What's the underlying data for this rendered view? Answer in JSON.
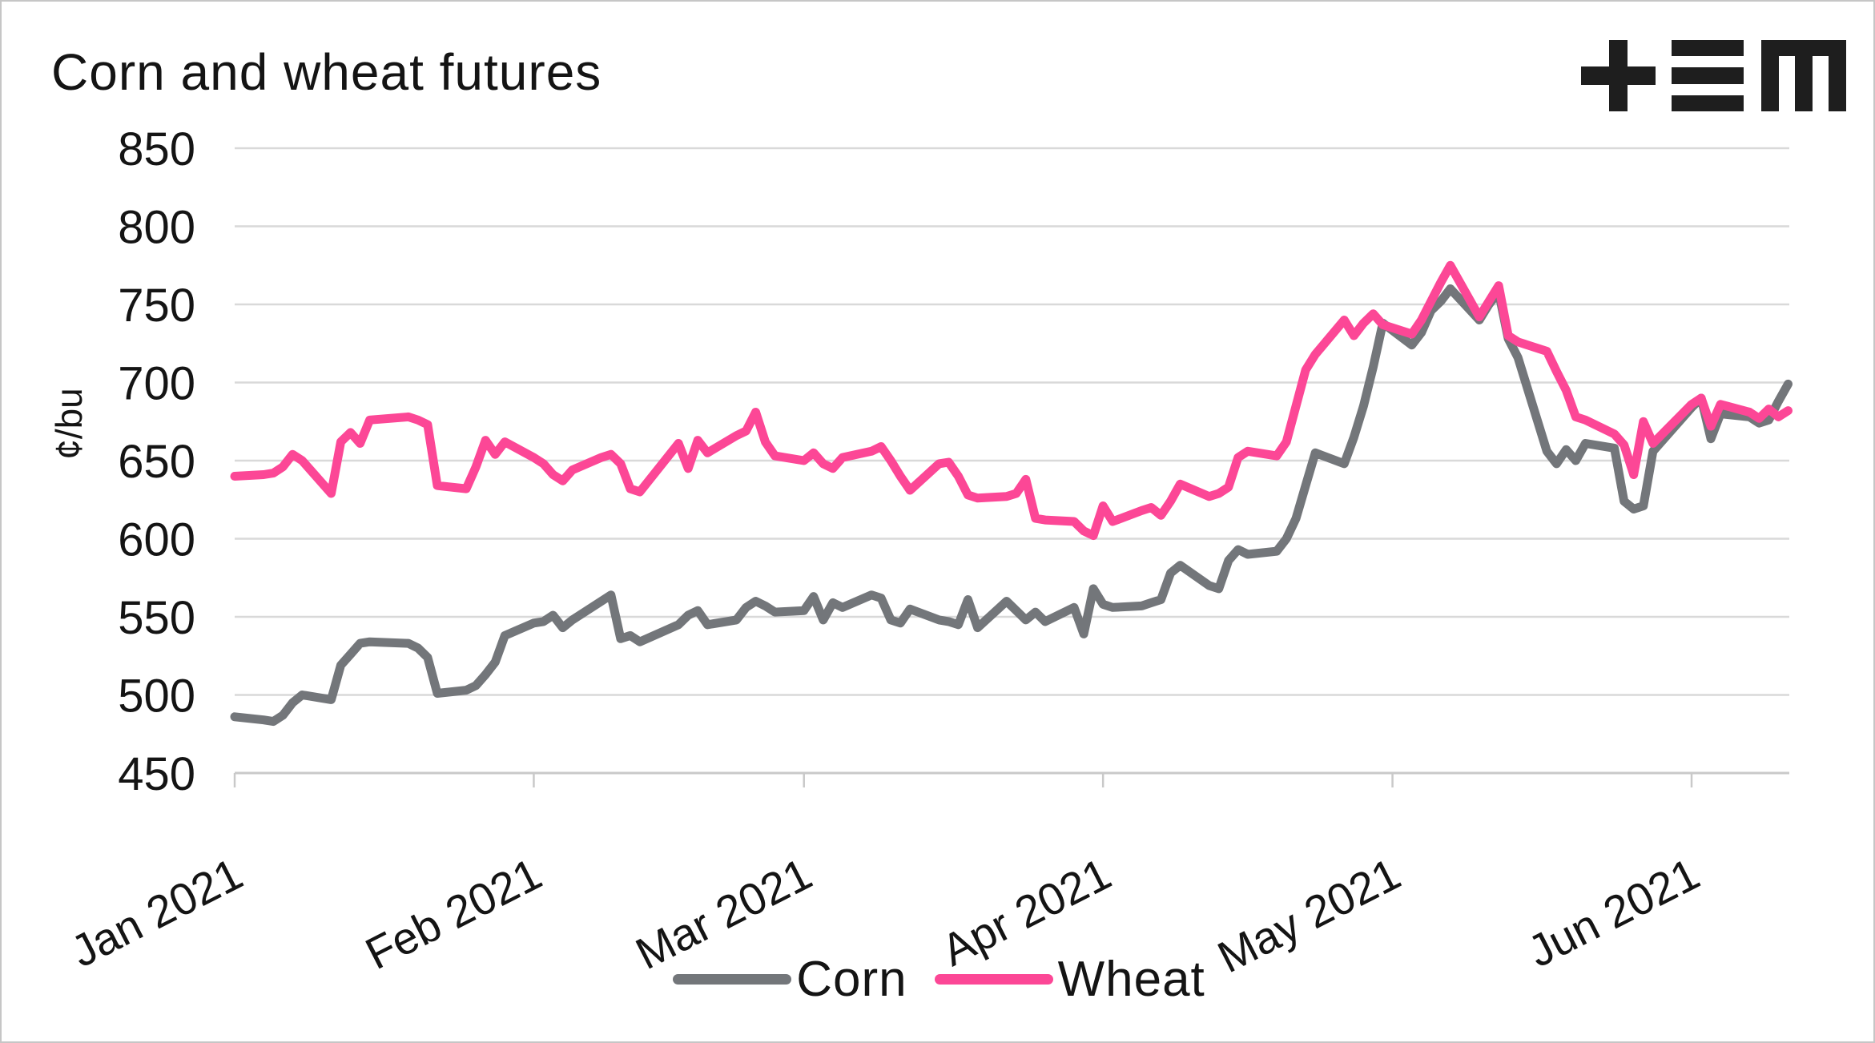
{
  "header": {
    "title": "Corn and wheat futures",
    "logo_glyphs": "plus-triple-bar-M"
  },
  "colors": {
    "corn": "#73767a",
    "wheat": "#fc4796",
    "gridline": "#d9d9d9",
    "axis_line": "#c9c9c9",
    "text": "#141414"
  },
  "chart_data": {
    "type": "line",
    "title": "Corn and wheat futures",
    "xlabel": "",
    "ylabel": "¢/bu",
    "ylim": [
      450,
      850
    ],
    "y_ticks": [
      850,
      800,
      750,
      700,
      650,
      600,
      550,
      500,
      450
    ],
    "grid": "horizontal",
    "legend_position": "bottom-center",
    "x_unit": "days since Jan 1 2021",
    "xlim_days": [
      0,
      161
    ],
    "x_ticks": [
      {
        "label": "Jan 2021",
        "day": 0
      },
      {
        "label": "Feb 2021",
        "day": 31
      },
      {
        "label": "Mar 2021",
        "day": 59
      },
      {
        "label": "Apr 2021",
        "day": 90
      },
      {
        "label": "May 2021",
        "day": 120
      },
      {
        "label": "Jun 2021",
        "day": 151
      }
    ],
    "series": [
      {
        "name": "Corn",
        "color": "#73767a",
        "points": [
          [
            0,
            486
          ],
          [
            3,
            484
          ],
          [
            4,
            483
          ],
          [
            5,
            487
          ],
          [
            6,
            495
          ],
          [
            7,
            500
          ],
          [
            10,
            497
          ],
          [
            11,
            519
          ],
          [
            12,
            526
          ],
          [
            13,
            533
          ],
          [
            14,
            534
          ],
          [
            18,
            533
          ],
          [
            19,
            530
          ],
          [
            20,
            524
          ],
          [
            21,
            501
          ],
          [
            24,
            503
          ],
          [
            25,
            506
          ],
          [
            26,
            513
          ],
          [
            27,
            521
          ],
          [
            28,
            538
          ],
          [
            31,
            546
          ],
          [
            32,
            547
          ],
          [
            33,
            551
          ],
          [
            34,
            543
          ],
          [
            35,
            548
          ],
          [
            38,
            560
          ],
          [
            39,
            564
          ],
          [
            40,
            536
          ],
          [
            41,
            538
          ],
          [
            42,
            534
          ],
          [
            46,
            545
          ],
          [
            47,
            551
          ],
          [
            48,
            554
          ],
          [
            49,
            545
          ],
          [
            52,
            548
          ],
          [
            53,
            556
          ],
          [
            54,
            560
          ],
          [
            55,
            557
          ],
          [
            56,
            553
          ],
          [
            59,
            554
          ],
          [
            60,
            563
          ],
          [
            61,
            548
          ],
          [
            62,
            559
          ],
          [
            63,
            556
          ],
          [
            66,
            564
          ],
          [
            67,
            562
          ],
          [
            68,
            548
          ],
          [
            69,
            546
          ],
          [
            70,
            555
          ],
          [
            73,
            548
          ],
          [
            74,
            547
          ],
          [
            75,
            545
          ],
          [
            76,
            561
          ],
          [
            77,
            543
          ],
          [
            80,
            560
          ],
          [
            81,
            554
          ],
          [
            82,
            548
          ],
          [
            83,
            553
          ],
          [
            84,
            547
          ],
          [
            87,
            556
          ],
          [
            88,
            539
          ],
          [
            89,
            568
          ],
          [
            90,
            558
          ],
          [
            91,
            556
          ],
          [
            94,
            557
          ],
          [
            95,
            559
          ],
          [
            96,
            561
          ],
          [
            97,
            578
          ],
          [
            98,
            583
          ],
          [
            101,
            570
          ],
          [
            102,
            568
          ],
          [
            103,
            586
          ],
          [
            104,
            593
          ],
          [
            105,
            590
          ],
          [
            108,
            592
          ],
          [
            109,
            600
          ],
          [
            110,
            613
          ],
          [
            111,
            634
          ],
          [
            112,
            655
          ],
          [
            115,
            648
          ],
          [
            116,
            665
          ],
          [
            117,
            685
          ],
          [
            118,
            710
          ],
          [
            119,
            738
          ],
          [
            122,
            724
          ],
          [
            123,
            732
          ],
          [
            124,
            746
          ],
          [
            125,
            752
          ],
          [
            126,
            760
          ],
          [
            129,
            740
          ],
          [
            130,
            750
          ],
          [
            131,
            758
          ],
          [
            132,
            728
          ],
          [
            133,
            716
          ],
          [
            136,
            656
          ],
          [
            137,
            648
          ],
          [
            138,
            657
          ],
          [
            139,
            650
          ],
          [
            140,
            661
          ],
          [
            143,
            658
          ],
          [
            144,
            624
          ],
          [
            145,
            619
          ],
          [
            146,
            621
          ],
          [
            147,
            656
          ],
          [
            151,
            684
          ],
          [
            152,
            690
          ],
          [
            153,
            664
          ],
          [
            154,
            680
          ],
          [
            157,
            678
          ],
          [
            158,
            674
          ],
          [
            159,
            676
          ],
          [
            160,
            688
          ],
          [
            161,
            699
          ]
        ]
      },
      {
        "name": "Wheat",
        "color": "#fc4796",
        "points": [
          [
            0,
            640
          ],
          [
            3,
            641
          ],
          [
            4,
            642
          ],
          [
            5,
            646
          ],
          [
            6,
            654
          ],
          [
            7,
            650
          ],
          [
            10,
            629
          ],
          [
            11,
            662
          ],
          [
            12,
            668
          ],
          [
            13,
            661
          ],
          [
            14,
            676
          ],
          [
            18,
            678
          ],
          [
            19,
            676
          ],
          [
            20,
            673
          ],
          [
            21,
            634
          ],
          [
            24,
            632
          ],
          [
            25,
            646
          ],
          [
            26,
            663
          ],
          [
            27,
            654
          ],
          [
            28,
            662
          ],
          [
            31,
            652
          ],
          [
            32,
            648
          ],
          [
            33,
            641
          ],
          [
            34,
            637
          ],
          [
            35,
            644
          ],
          [
            38,
            652
          ],
          [
            39,
            654
          ],
          [
            40,
            648
          ],
          [
            41,
            632
          ],
          [
            42,
            630
          ],
          [
            46,
            661
          ],
          [
            47,
            645
          ],
          [
            48,
            663
          ],
          [
            49,
            655
          ],
          [
            52,
            666
          ],
          [
            53,
            669
          ],
          [
            54,
            681
          ],
          [
            55,
            662
          ],
          [
            56,
            653
          ],
          [
            59,
            650
          ],
          [
            60,
            655
          ],
          [
            61,
            648
          ],
          [
            62,
            645
          ],
          [
            63,
            652
          ],
          [
            66,
            656
          ],
          [
            67,
            659
          ],
          [
            68,
            650
          ],
          [
            69,
            640
          ],
          [
            70,
            631
          ],
          [
            73,
            648
          ],
          [
            74,
            649
          ],
          [
            75,
            640
          ],
          [
            76,
            628
          ],
          [
            77,
            626
          ],
          [
            80,
            627
          ],
          [
            81,
            629
          ],
          [
            82,
            638
          ],
          [
            83,
            613
          ],
          [
            84,
            612
          ],
          [
            87,
            611
          ],
          [
            88,
            605
          ],
          [
            89,
            602
          ],
          [
            90,
            621
          ],
          [
            91,
            611
          ],
          [
            94,
            618
          ],
          [
            95,
            620
          ],
          [
            96,
            615
          ],
          [
            97,
            624
          ],
          [
            98,
            635
          ],
          [
            101,
            627
          ],
          [
            102,
            629
          ],
          [
            103,
            633
          ],
          [
            104,
            652
          ],
          [
            105,
            656
          ],
          [
            108,
            653
          ],
          [
            109,
            662
          ],
          [
            110,
            685
          ],
          [
            111,
            708
          ],
          [
            112,
            718
          ],
          [
            115,
            740
          ],
          [
            116,
            730
          ],
          [
            117,
            738
          ],
          [
            118,
            744
          ],
          [
            119,
            737
          ],
          [
            122,
            731
          ],
          [
            123,
            740
          ],
          [
            124,
            752
          ],
          [
            125,
            764
          ],
          [
            126,
            775
          ],
          [
            129,
            742
          ],
          [
            130,
            752
          ],
          [
            131,
            762
          ],
          [
            132,
            730
          ],
          [
            133,
            726
          ],
          [
            136,
            720
          ],
          [
            137,
            707
          ],
          [
            138,
            695
          ],
          [
            139,
            678
          ],
          [
            140,
            676
          ],
          [
            143,
            667
          ],
          [
            144,
            660
          ],
          [
            145,
            641
          ],
          [
            146,
            675
          ],
          [
            147,
            661
          ],
          [
            151,
            686
          ],
          [
            152,
            690
          ],
          [
            153,
            672
          ],
          [
            154,
            686
          ],
          [
            157,
            681
          ],
          [
            158,
            677
          ],
          [
            159,
            683
          ],
          [
            160,
            678
          ],
          [
            161,
            682
          ]
        ]
      }
    ]
  }
}
